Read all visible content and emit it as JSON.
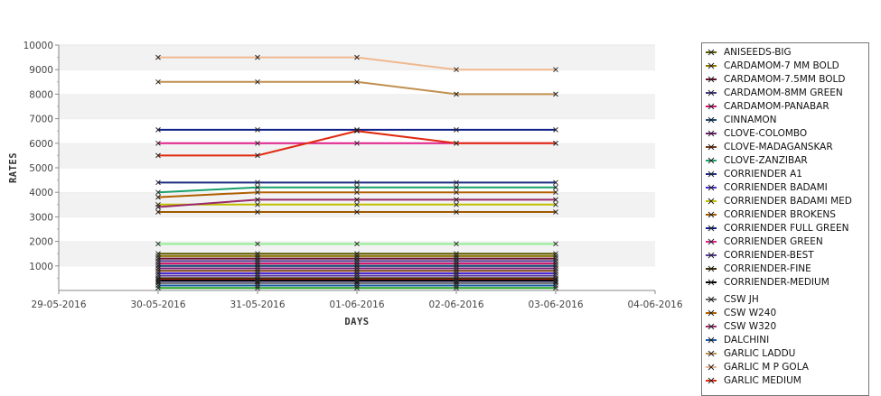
{
  "chart_data": {
    "type": "line",
    "xlabel": "DAYS",
    "ylabel": "RATES",
    "x_ticks": [
      "29-05-2016",
      "30-05-2016",
      "31-05-2016",
      "01-06-2016",
      "02-06-2016",
      "03-06-2016",
      "04-06-2016"
    ],
    "x": [
      "30-05-2016",
      "31-05-2016",
      "01-06-2016",
      "02-06-2016",
      "03-06-2016"
    ],
    "ylim": [
      0,
      10000
    ],
    "y_ticks": [
      1000,
      2000,
      3000,
      4000,
      5000,
      6000,
      7000,
      8000,
      9000,
      10000
    ],
    "grid": "horizontal alternating bands",
    "legend_position": "right",
    "series": [
      {
        "name": "ANISEEDS-BIG",
        "color": "#5a5a00",
        "values": [
          1500,
          1500,
          1500,
          1500,
          1500
        ]
      },
      {
        "name": "CARDAMOM-7 MM BOLD",
        "color": "#8b7500",
        "values": [
          1400,
          1400,
          1400,
          1400,
          1400
        ]
      },
      {
        "name": "CARDAMOM-7.5MM BOLD",
        "color": "#6a0d2a",
        "values": [
          1300,
          1300,
          1300,
          1300,
          1300
        ]
      },
      {
        "name": "CARDAMOM-8MM GREEN",
        "color": "#4b3a8c",
        "values": [
          1200,
          1200,
          1200,
          1200,
          1200
        ]
      },
      {
        "name": "CARDAMOM-PANABAR",
        "color": "#d0106a",
        "values": [
          1100,
          1100,
          1100,
          1100,
          1100
        ]
      },
      {
        "name": "CINNAMON",
        "color": "#1a4d7a",
        "values": [
          1000,
          1000,
          1000,
          1000,
          1000
        ]
      },
      {
        "name": "CLOVE-COLOMBO",
        "color": "#7a1a7a",
        "values": [
          900,
          900,
          900,
          900,
          900
        ]
      },
      {
        "name": "CLOVE-MADAGANSKAR",
        "color": "#7a3a10",
        "values": [
          800,
          800,
          800,
          800,
          800
        ]
      },
      {
        "name": "CLOVE-ZANZIBAR",
        "color": "#1aa06a",
        "values": [
          4000,
          4200,
          4200,
          4200,
          4200
        ]
      },
      {
        "name": "CORRIENDER A1",
        "color": "#1a2a80",
        "values": [
          4400,
          4400,
          4400,
          4400,
          4400
        ]
      },
      {
        "name": "CORRIENDER BADAMI",
        "color": "#4a2ad0",
        "values": [
          700,
          700,
          700,
          700,
          700
        ]
      },
      {
        "name": "CORRIENDER BADAMI MED",
        "color": "#c0c000",
        "values": [
          3500,
          3500,
          3500,
          3500,
          3500
        ]
      },
      {
        "name": "CORRIENDER BROKENS",
        "color": "#a05a00",
        "values": [
          3200,
          3200,
          3200,
          3200,
          3200
        ]
      },
      {
        "name": "CORRIENDER FULL GREEN",
        "color": "#10208a",
        "values": [
          6550,
          6550,
          6550,
          6550,
          6550
        ]
      },
      {
        "name": "CORRIENDER GREEN",
        "color": "#e0208a",
        "values": [
          6000,
          6000,
          6000,
          6000,
          6000
        ]
      },
      {
        "name": "CORRIENDER-BEST",
        "color": "#5a3a9a",
        "values": [
          600,
          600,
          600,
          600,
          600
        ]
      },
      {
        "name": "CORRIENDER-FINE",
        "color": "#3a2a00",
        "values": [
          500,
          500,
          500,
          500,
          500
        ]
      },
      {
        "name": "CORRIENDER-MEDIUM",
        "color": "#000000",
        "values": [
          400,
          400,
          400,
          400,
          400
        ]
      },
      {
        "name": "CSW JH",
        "color": "#6a6a6a",
        "values": [
          300,
          300,
          300,
          300,
          300
        ]
      },
      {
        "name": "CSW W240",
        "color": "#b06000",
        "values": [
          3800,
          4000,
          4000,
          4000,
          4000
        ]
      },
      {
        "name": "CSW W320",
        "color": "#9a2a6a",
        "values": [
          3400,
          3700,
          3700,
          3700,
          3700
        ]
      },
      {
        "name": "DALCHINI",
        "color": "#1a5aa0",
        "values": [
          200,
          200,
          200,
          200,
          200
        ]
      },
      {
        "name": "GARLIC LADDU",
        "color": "#c09050",
        "values": [
          8500,
          8500,
          8500,
          8000,
          8000
        ]
      },
      {
        "name": "GARLIC M P GOLA",
        "color": "#f0b890",
        "values": [
          9500,
          9500,
          9500,
          9000,
          9000
        ]
      },
      {
        "name": "GARLIC MEDIUM",
        "color": "#e02a10",
        "values": [
          5500,
          5500,
          6500,
          6000,
          6000
        ]
      }
    ],
    "extra_series": [
      {
        "color": "#90ee90",
        "values": [
          1900,
          1900,
          1900,
          1900,
          1900
        ]
      },
      {
        "color": "#2a6a2a",
        "values": [
          1000,
          1000,
          1000,
          1000,
          1000
        ]
      },
      {
        "color": "#e02020",
        "values": [
          450,
          450,
          450,
          450,
          450
        ]
      },
      {
        "color": "#a0a0ff",
        "values": [
          350,
          350,
          350,
          350,
          350
        ]
      },
      {
        "color": "#20a020",
        "values": [
          100,
          100,
          100,
          100,
          100
        ]
      }
    ]
  }
}
